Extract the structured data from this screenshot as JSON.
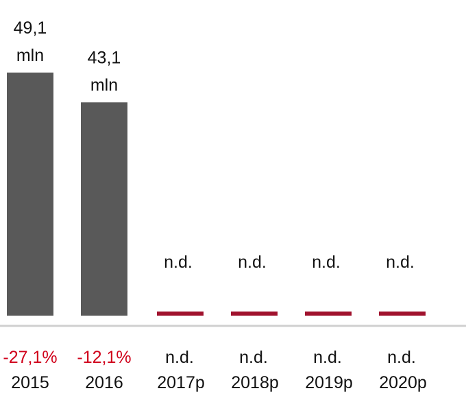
{
  "chart_data": {
    "type": "bar",
    "title": "",
    "xlabel": "",
    "ylabel": "",
    "categories": [
      "2015",
      "2016",
      "2017p",
      "2018p",
      "2019p",
      "2020p"
    ],
    "values": [
      49.1,
      43.1,
      null,
      null,
      null,
      null
    ],
    "value_labels": [
      [
        "49,1",
        "mln"
      ],
      [
        "43,1",
        "mln"
      ],
      [
        "n.d."
      ],
      [
        "n.d."
      ],
      [
        "n.d."
      ],
      [
        "n.d."
      ]
    ],
    "change_labels": [
      "-27,1%",
      "-12,1%",
      "n.d.",
      "n.d.",
      "n.d.",
      "n.d."
    ],
    "ylim": [
      0,
      55
    ],
    "grid": false,
    "colors": {
      "bar": "#595959",
      "missing_marker": "#a0122d",
      "change_negative": "#d0021b",
      "change_neutral": "#111111",
      "baseline": "#d0d0d0",
      "text": "#111111"
    }
  }
}
